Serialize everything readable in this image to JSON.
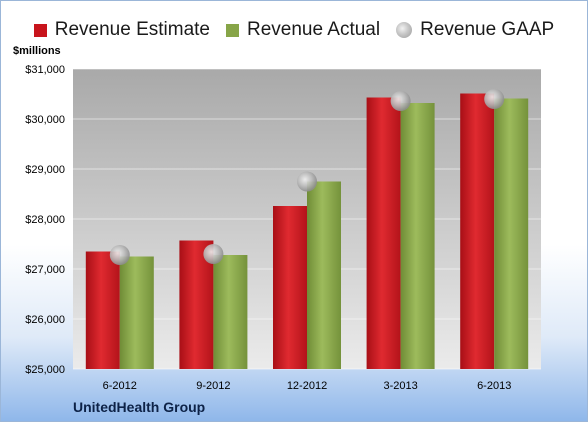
{
  "chart_data": {
    "type": "bar",
    "title": "",
    "ylabel": "$millions",
    "xlabel": "",
    "categories": [
      "6-2012",
      "9-2012",
      "12-2012",
      "3-2013",
      "6-2013"
    ],
    "series": [
      {
        "name": "Revenue Estimate",
        "values": [
          27350,
          27570,
          28260,
          30430,
          30510
        ]
      },
      {
        "name": "Revenue Actual",
        "values": [
          27250,
          27280,
          28750,
          30320,
          30410
        ]
      },
      {
        "name": "Revenue GAAP",
        "values": [
          27280,
          27300,
          28750,
          30360,
          30400
        ]
      }
    ],
    "ylim": [
      25000,
      31000
    ],
    "yticks": [
      "$25,000",
      "$26,000",
      "$27,000",
      "$28,000",
      "$29,000",
      "$30,000",
      "$31,000"
    ],
    "grid": true,
    "legend_position": "top"
  },
  "colors": {
    "estimate": "#c8141c",
    "actual": "#87a548",
    "gaap": "#b8b8b8"
  },
  "footer": {
    "company": "UnitedHealth Group"
  }
}
